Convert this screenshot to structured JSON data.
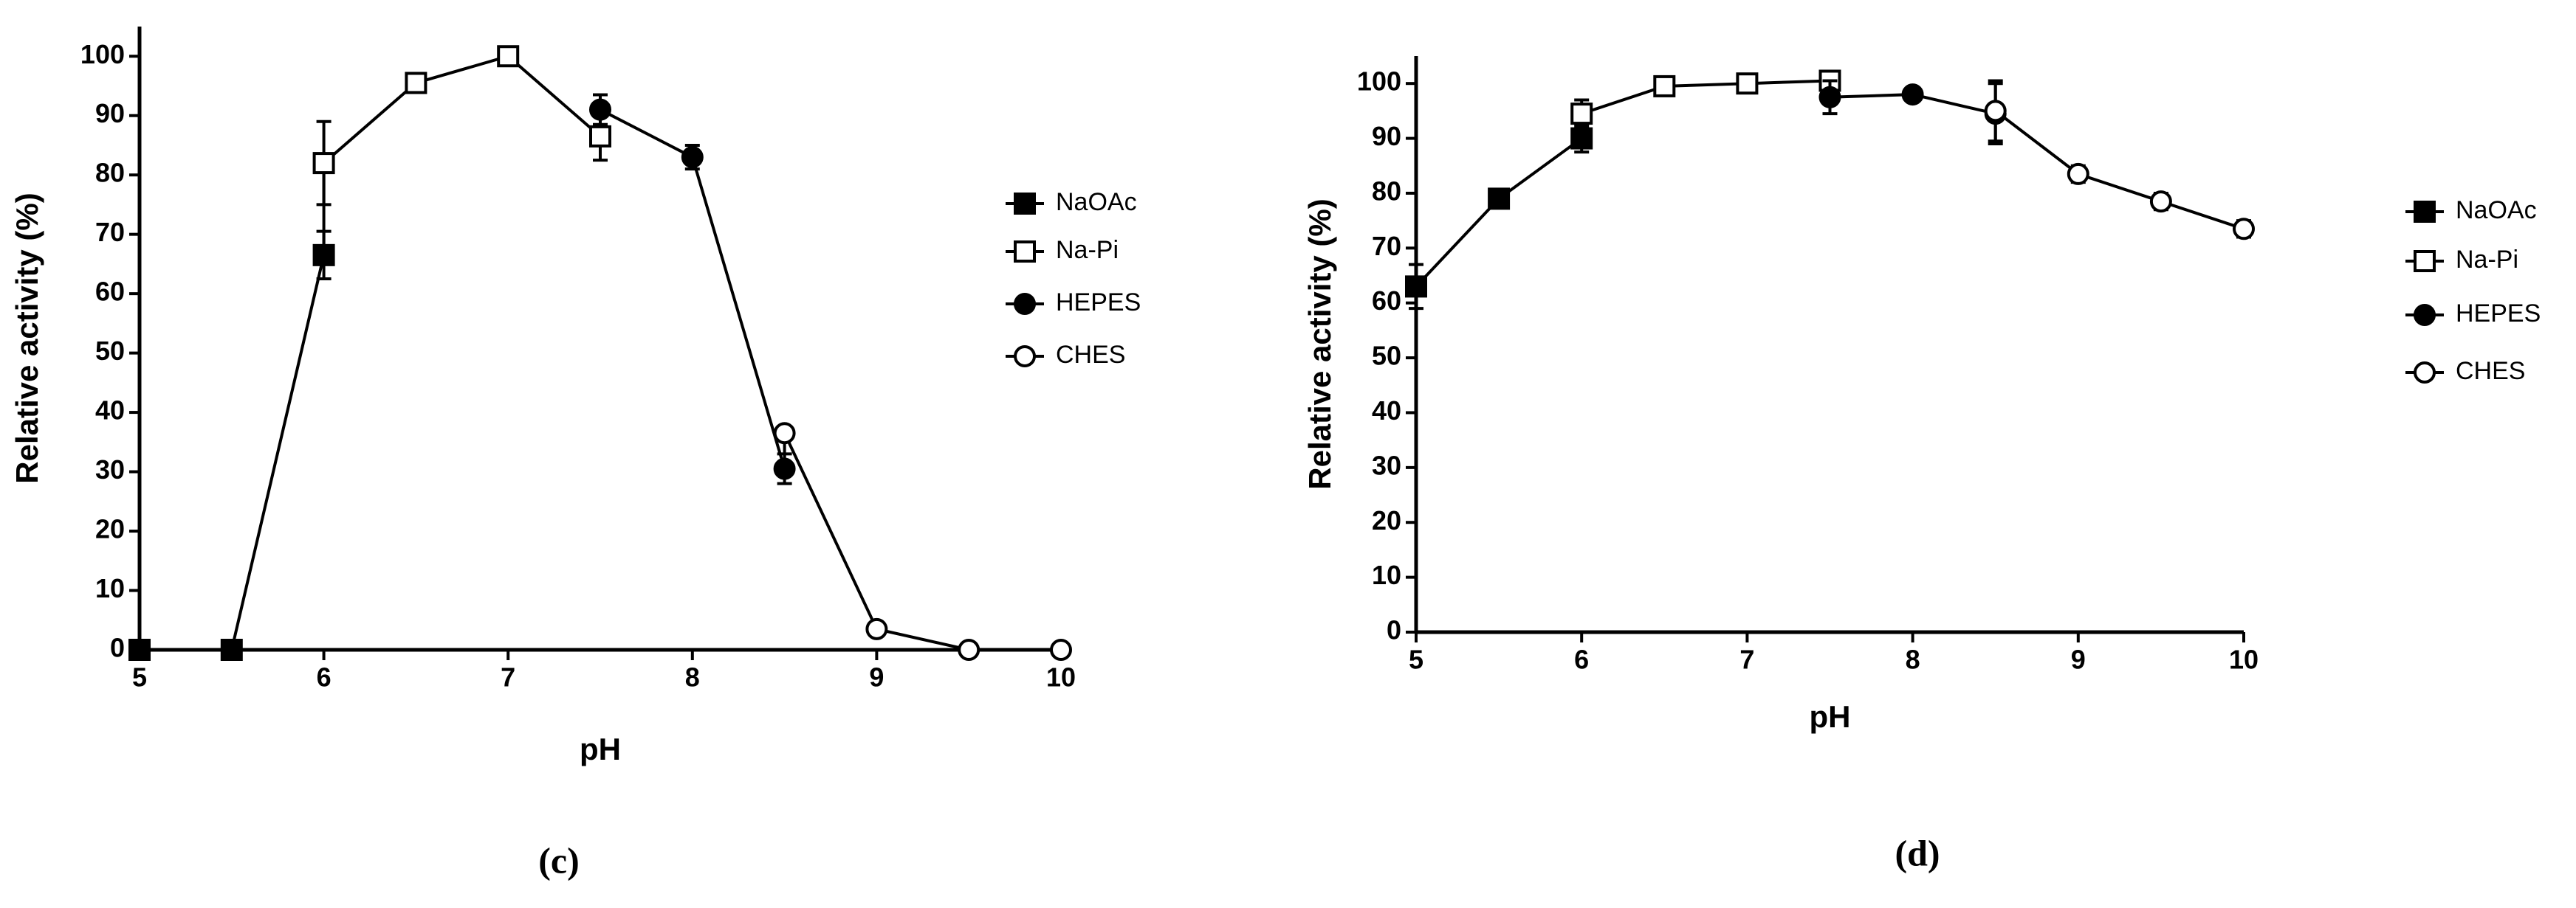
{
  "chart_data": [
    {
      "type": "line",
      "caption": "(c)",
      "x_label": "pH",
      "y_label": "Relative activity (%)",
      "xlim": [
        5,
        10
      ],
      "xticks": [
        5,
        6,
        7,
        8,
        9,
        10
      ],
      "ylim": [
        0,
        105
      ],
      "yticks": [
        0,
        10,
        20,
        30,
        40,
        50,
        60,
        70,
        80,
        90,
        100
      ],
      "series": [
        {
          "name": "NaOAc",
          "color": "#000000",
          "marker": "filled-square",
          "x": [
            5,
            5.5,
            6
          ],
          "values": [
            0,
            0,
            66.5
          ],
          "errors": [
            null,
            null,
            4
          ]
        },
        {
          "name": "Na-Pi",
          "color": "#000000",
          "marker": "open-square",
          "x": [
            6,
            6.5,
            7,
            7.5
          ],
          "values": [
            82,
            95.5,
            100,
            86.5
          ],
          "errors": [
            7,
            1,
            0.5,
            4
          ]
        },
        {
          "name": "HEPES",
          "color": "#000000",
          "marker": "filled-circle",
          "x": [
            7.5,
            8,
            8.5
          ],
          "values": [
            91,
            83,
            30.5
          ],
          "errors": [
            2.5,
            2,
            2.5
          ]
        },
        {
          "name": "CHES",
          "color": "#000000",
          "marker": "open-circle",
          "x": [
            8.5,
            9,
            9.5,
            10
          ],
          "values": [
            36.5,
            3.5,
            0,
            0
          ],
          "errors": [
            null,
            null,
            null,
            null
          ]
        }
      ]
    },
    {
      "type": "line",
      "caption": "(d)",
      "x_label": "pH",
      "y_label": "Relative activity (%)",
      "xlim": [
        5,
        10
      ],
      "xticks": [
        5,
        6,
        7,
        8,
        9,
        10
      ],
      "ylim": [
        0,
        105
      ],
      "yticks": [
        0,
        10,
        20,
        30,
        40,
        50,
        60,
        70,
        80,
        90,
        100
      ],
      "series": [
        {
          "name": "NaOAc",
          "color": "#000000",
          "marker": "filled-square",
          "x": [
            5,
            5.5,
            6
          ],
          "values": [
            63,
            79,
            90
          ],
          "errors": [
            4,
            0.5,
            2.5
          ]
        },
        {
          "name": "Na-Pi",
          "color": "#000000",
          "marker": "open-square",
          "x": [
            6,
            6.5,
            7,
            7.5
          ],
          "values": [
            94.5,
            99.5,
            100,
            100.5
          ],
          "errors": [
            2.5,
            0.5,
            0.5,
            1
          ]
        },
        {
          "name": "HEPES",
          "color": "#000000",
          "marker": "filled-circle",
          "x": [
            7.5,
            8,
            8.5
          ],
          "values": [
            97.5,
            98,
            94.5
          ],
          "errors": [
            3,
            0.5,
            5.5
          ]
        },
        {
          "name": "CHES",
          "color": "#000000",
          "marker": "open-circle",
          "x": [
            8.5,
            9,
            9.5,
            10
          ],
          "values": [
            95,
            83.5,
            78.5,
            73.5
          ],
          "errors": [
            5.5,
            1.5,
            1.5,
            1.5
          ]
        }
      ]
    }
  ]
}
